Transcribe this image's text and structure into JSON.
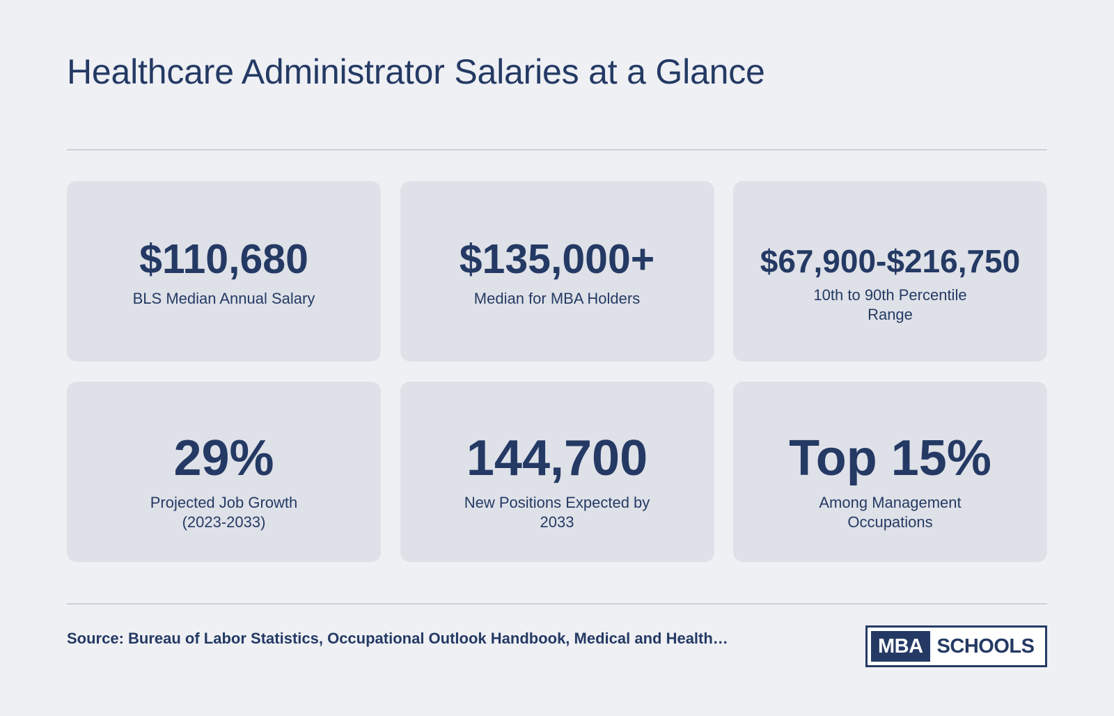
{
  "header": {
    "title": "Healthcare Administrator Salaries at a Glance"
  },
  "stats": [
    {
      "value": "$110,680",
      "label": "BLS Median Annual Salary"
    },
    {
      "value": "$135,000+",
      "label": "Median for MBA Holders"
    },
    {
      "value": "$67,900-$216,750",
      "label": "10th to 90th Percentile Range"
    },
    {
      "value": "29%",
      "label": "Projected Job Growth (2023-2033)"
    },
    {
      "value": "144,700",
      "label": "New Positions Expected by 2033"
    },
    {
      "value": "Top 15%",
      "label": "Among Management Occupations"
    }
  ],
  "footer": {
    "source": "Source: Bureau of Labor Statistics, Occupational Outlook Handbook, Medical and Health…",
    "logo": {
      "part1": "MBA",
      "part2": "SCHOOLS"
    }
  },
  "colors": {
    "background": "#eff0f4",
    "card": "#dfe1e8",
    "text": "#243a64",
    "divider": "#cdd0d6"
  }
}
